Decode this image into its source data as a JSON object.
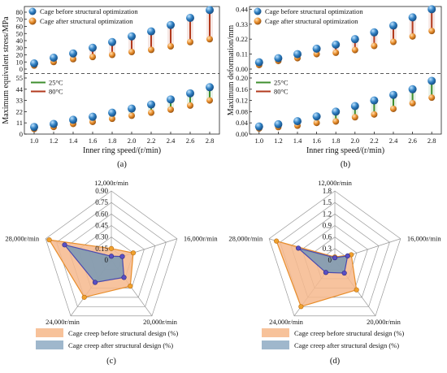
{
  "colors": {
    "before": "#2f7fc1",
    "after": "#e88d2a",
    "line25": "#3f8f2f",
    "line80": "#b23a1e",
    "radar_before_fill": "#f6b98d",
    "radar_before_stroke": "#e88d2a",
    "radar_after_fill": "#7e9bb3",
    "radar_after_stroke": "#4a49b0",
    "legend_before": "#f7c29a",
    "legend_after": "#9fb7cc"
  },
  "chart_data": [
    {
      "id": "a",
      "type": "dumbbell",
      "caption": "(a)",
      "xlabel": "Inner ring speed/(r/min)",
      "ylabel": "Maximum equivalent stress/MPa",
      "x": [
        1.0,
        1.2,
        1.4,
        1.6,
        1.8,
        2.0,
        2.2,
        2.4,
        2.6,
        2.8
      ],
      "x_ticks": [
        "1.0",
        "1.2",
        "1.4",
        "1.6",
        "1.8",
        "2.0",
        "2.2",
        "2.4",
        "2.6",
        "2.8"
      ],
      "xlim": [
        0.9,
        2.9
      ],
      "legend": [
        "Cage before structural optimization",
        "Cage after structural optimization"
      ],
      "line_legend": [
        "25°C",
        "80°C"
      ],
      "upper": {
        "condition": "80°C",
        "ylim": [
          0,
          88
        ],
        "ticks": [
          "0",
          "10",
          "20",
          "30",
          "40",
          "50",
          "60",
          "70",
          "80"
        ],
        "tick_values": [
          0,
          10,
          20,
          30,
          40,
          50,
          60,
          70,
          80
        ],
        "before": [
          8,
          16,
          22,
          30,
          38,
          46,
          53,
          62,
          72,
          83
        ],
        "after": [
          5,
          10,
          14,
          17,
          20,
          24,
          27,
          32,
          38,
          42
        ]
      },
      "lower": {
        "condition": "25°C",
        "ylim": [
          0,
          55
        ],
        "ticks": [
          "0",
          "11",
          "22",
          "33",
          "44",
          "55"
        ],
        "tick_values": [
          0,
          11,
          22,
          33,
          44,
          55
        ],
        "before": [
          7,
          10,
          14,
          17,
          21,
          25,
          29,
          34,
          40,
          46
        ],
        "after": [
          5,
          7,
          10,
          12,
          15,
          18,
          21,
          24,
          28,
          33
        ]
      }
    },
    {
      "id": "b",
      "type": "dumbbell",
      "caption": "(b)",
      "xlabel": "Inner ring speed/(r/min)",
      "ylabel": "Maximum deformation/mm",
      "x": [
        1.0,
        1.2,
        1.4,
        1.6,
        1.8,
        2.0,
        2.2,
        2.4,
        2.6,
        2.8
      ],
      "x_ticks": [
        "1.0",
        "1.2",
        "1.4",
        "1.6",
        "1.8",
        "2.0",
        "2.2",
        "2.4",
        "2.6",
        "2.8"
      ],
      "xlim": [
        0.9,
        2.9
      ],
      "legend": [
        "Cage before structural optimization",
        "Cage after structural optimization"
      ],
      "line_legend": [
        "25°C",
        "80°C"
      ],
      "upper": {
        "condition": "80°C",
        "ylim": [
          0,
          0.46
        ],
        "ticks": [
          "0.00",
          "0.11",
          "0.22",
          "0.33",
          "0.44"
        ],
        "tick_values": [
          0,
          0.11,
          0.22,
          0.33,
          0.44
        ],
        "before": [
          0.05,
          0.08,
          0.11,
          0.15,
          0.18,
          0.22,
          0.27,
          0.32,
          0.38,
          0.44
        ],
        "after": [
          0.03,
          0.06,
          0.08,
          0.11,
          0.12,
          0.14,
          0.17,
          0.2,
          0.24,
          0.28
        ]
      },
      "lower": {
        "condition": "25°C",
        "ylim": [
          0,
          0.2
        ],
        "ticks": [
          "0.00",
          "0.04",
          "0.08",
          "0.12",
          "0.16",
          "0.20"
        ],
        "tick_values": [
          0,
          0.04,
          0.08,
          0.12,
          0.16,
          0.2
        ],
        "before": [
          0.027,
          0.035,
          0.046,
          0.063,
          0.08,
          0.1,
          0.12,
          0.14,
          0.16,
          0.19
        ],
        "after": [
          0.02,
          0.025,
          0.03,
          0.04,
          0.045,
          0.06,
          0.07,
          0.09,
          0.11,
          0.13
        ]
      }
    },
    {
      "id": "c",
      "type": "radar",
      "caption": "(c)",
      "axes": [
        "12,000r/min",
        "16,000r/min",
        "20,000r/min",
        "24,000r/min",
        "28,000r/min"
      ],
      "rmax": 0.9,
      "rings": [
        "0.15",
        "0.30",
        "0.45",
        "0.60",
        "0.75",
        "0.90"
      ],
      "ring_values": [
        0.15,
        0.3,
        0.45,
        0.6,
        0.75,
        0.9
      ],
      "radial_labels": [
        "0",
        "0.15",
        "0.30",
        "0.45",
        "0.60",
        "0.75",
        "0.90"
      ],
      "radial_values": [
        0,
        0.15,
        0.3,
        0.45,
        0.6,
        0.75,
        0.9
      ],
      "series": [
        {
          "name": "Cage creep before structural design (%)",
          "values": [
            0.15,
            0.3,
            0.42,
            0.6,
            0.85
          ]
        },
        {
          "name": "Cage creep after structural design (%)",
          "values": [
            0.05,
            0.15,
            0.28,
            0.36,
            0.64
          ]
        }
      ]
    },
    {
      "id": "d",
      "type": "radar",
      "caption": "(d)",
      "axes": [
        "12,000r/min",
        "16,000r/min",
        "20,000r/min",
        "24,000r/min",
        "28,000r/min"
      ],
      "rmax": 1.8,
      "rings": [
        "0.3",
        "0.6",
        "0.9",
        "1.2",
        "1.5",
        "1.8"
      ],
      "ring_values": [
        0.3,
        0.6,
        0.9,
        1.2,
        1.5,
        1.8
      ],
      "radial_labels": [
        "0",
        "0.3",
        "0.6",
        "0.9",
        "1.2",
        "1.5",
        "1.8"
      ],
      "radial_values": [
        0,
        0.3,
        0.6,
        0.9,
        1.2,
        1.5,
        1.8
      ],
      "series": [
        {
          "name": "Cage creep before structural design (%)",
          "values": [
            0.08,
            0.45,
            0.96,
            1.5,
            1.6
          ]
        },
        {
          "name": "Cage creep after structural design (%)",
          "values": [
            0.06,
            0.35,
            0.42,
            0.4,
            1.0
          ]
        }
      ]
    }
  ]
}
